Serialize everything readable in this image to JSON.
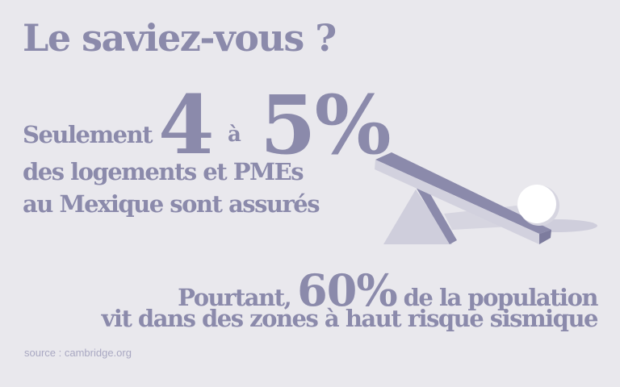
{
  "title": "Le saviez-vous ?",
  "stat1": {
    "prefix": "Seulement",
    "low": "4",
    "connector": "à",
    "high": "5%",
    "line2": "des logements et PMEs",
    "line3": "au Mexique sont assurés"
  },
  "stat2": {
    "prefix": "Pourtant,",
    "value": "60%",
    "suffix": "de la population",
    "line2": "vit dans des zones à haut risque sismique"
  },
  "source": "source : cambridge.org",
  "colors": {
    "background": "#e9e8ed",
    "text": "#8b8aab",
    "source": "#a9a8c2"
  },
  "illustration": "seesaw-with-ball-icon"
}
